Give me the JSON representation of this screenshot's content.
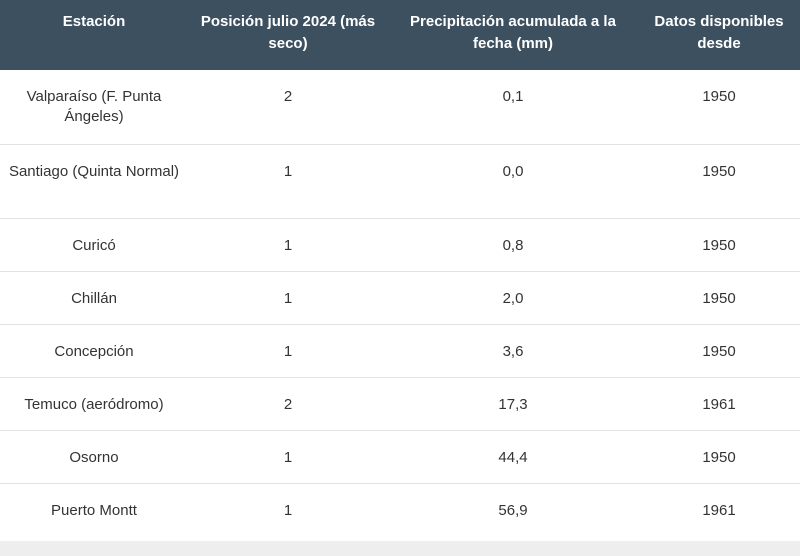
{
  "table": {
    "headers": [
      "Estación",
      "Posición julio 2024 (más seco)",
      "Precipitación acumulada a la fecha (mm)",
      "Datos disponibles desde"
    ],
    "rows": [
      [
        "Valparaíso (F. Punta Ángeles)",
        "2",
        "0,1",
        "1950"
      ],
      [
        "Santiago (Quinta Normal)",
        "1",
        "0,0",
        "1950"
      ],
      [
        "Curicó",
        "1",
        "0,8",
        "1950"
      ],
      [
        "Chillán",
        "1",
        "2,0",
        "1950"
      ],
      [
        "Concepción",
        "1",
        "3,6",
        "1950"
      ],
      [
        "Temuco (aeródromo)",
        "2",
        "17,3",
        "1961"
      ],
      [
        "Osorno",
        "1",
        "44,4",
        "1950"
      ],
      [
        "Puerto Montt",
        "1",
        "56,9",
        "1961"
      ]
    ]
  },
  "colors": {
    "header_bg": "#3d5060",
    "header_text": "#ffffff",
    "body_text": "#333333",
    "row_border": "#e2e2e2"
  }
}
